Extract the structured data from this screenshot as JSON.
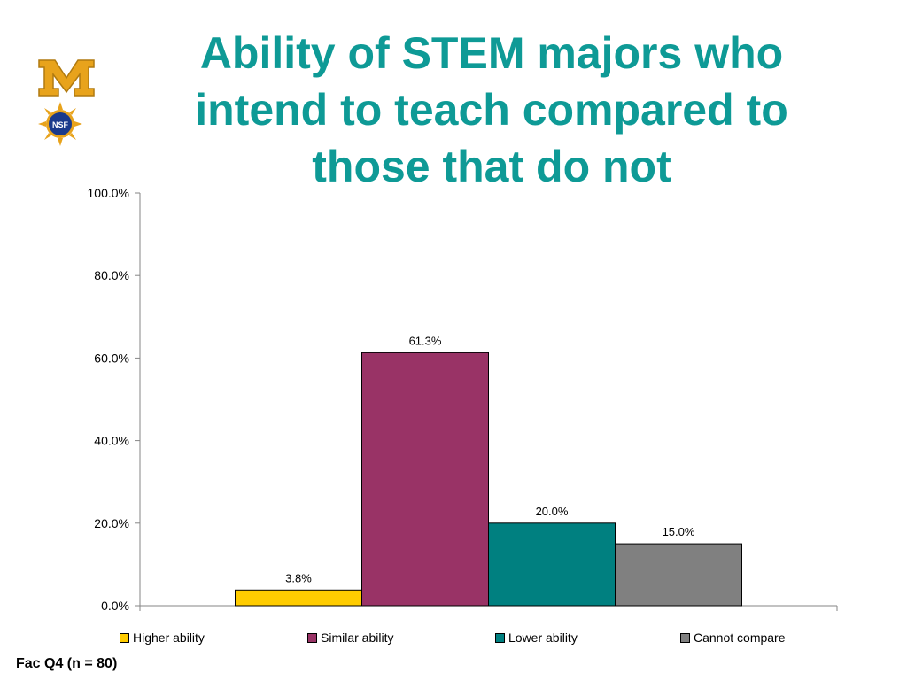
{
  "slide": {
    "title": "Ability of STEM majors who intend to teach compared to those that do not",
    "footnote": "Fac Q4 (n = 80)",
    "logos": [
      {
        "name": "university-m-logo",
        "text": "M",
        "color": "#e8a31c"
      },
      {
        "name": "nsf-seal-logo",
        "text": "NSF",
        "color": "#1a3a8c"
      }
    ]
  },
  "colors": {
    "title": "#0e9a96",
    "higher": "#ffcc00",
    "similar": "#993366",
    "lower": "#008080",
    "cannot": "#808080"
  },
  "chart_data": {
    "type": "bar",
    "categories": [
      "Higher ability",
      "Similar ability",
      "Lower ability",
      "Cannot compare"
    ],
    "values": [
      3.8,
      61.3,
      20.0,
      15.0
    ],
    "value_labels": [
      "3.8%",
      "61.3%",
      "20.0%",
      "15.0%"
    ],
    "colors": [
      "#ffcc00",
      "#993366",
      "#008080",
      "#808080"
    ],
    "ylim": [
      0,
      100
    ],
    "yticks": [
      "0.0%",
      "20.0%",
      "40.0%",
      "60.0%",
      "80.0%",
      "100.0%"
    ],
    "ytick_values": [
      0,
      20,
      40,
      60,
      80,
      100
    ],
    "grid": false,
    "legend": {
      "position": "bottom",
      "entries": [
        "Higher ability",
        "Similar ability",
        "Lower ability",
        "Cannot compare"
      ]
    }
  }
}
